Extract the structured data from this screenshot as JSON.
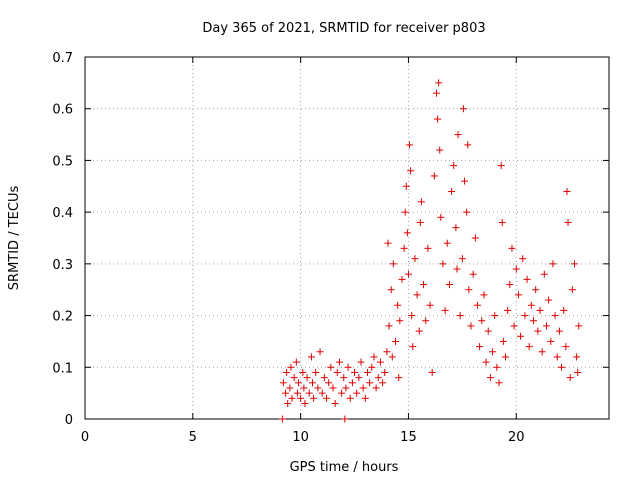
{
  "chart_data": {
    "type": "scatter",
    "title": "Day 365 of 2021, SRMTID for receiver p803",
    "xlabel": "GPS time / hours",
    "ylabel": "SRMTID / TECUs",
    "xlim": [
      0,
      24.3
    ],
    "ylim": [
      0,
      0.7
    ],
    "xticks": [
      0,
      5,
      10,
      15,
      20
    ],
    "yticks": [
      0,
      0.1,
      0.2,
      0.3,
      0.4,
      0.5,
      0.6,
      0.7
    ],
    "grid": true,
    "marker": "+",
    "color": "#e00000",
    "series": [
      {
        "name": "SRMTID",
        "points": [
          [
            9.15,
            0.0
          ],
          [
            9.2,
            0.07
          ],
          [
            9.3,
            0.05
          ],
          [
            9.35,
            0.09
          ],
          [
            9.4,
            0.03
          ],
          [
            9.5,
            0.06
          ],
          [
            9.55,
            0.1
          ],
          [
            9.6,
            0.04
          ],
          [
            9.7,
            0.08
          ],
          [
            9.8,
            0.11
          ],
          [
            9.85,
            0.05
          ],
          [
            9.9,
            0.07
          ],
          [
            10.0,
            0.04
          ],
          [
            10.1,
            0.09
          ],
          [
            10.15,
            0.06
          ],
          [
            10.2,
            0.03
          ],
          [
            10.3,
            0.08
          ],
          [
            10.4,
            0.05
          ],
          [
            10.5,
            0.12
          ],
          [
            10.55,
            0.07
          ],
          [
            10.6,
            0.04
          ],
          [
            10.7,
            0.09
          ],
          [
            10.8,
            0.06
          ],
          [
            10.9,
            0.13
          ],
          [
            11.0,
            0.05
          ],
          [
            11.1,
            0.08
          ],
          [
            11.2,
            0.04
          ],
          [
            11.3,
            0.07
          ],
          [
            11.4,
            0.1
          ],
          [
            11.5,
            0.06
          ],
          [
            11.6,
            0.03
          ],
          [
            11.7,
            0.09
          ],
          [
            11.8,
            0.11
          ],
          [
            11.9,
            0.05
          ],
          [
            12.0,
            0.08
          ],
          [
            12.05,
            0.0
          ],
          [
            12.1,
            0.06
          ],
          [
            12.2,
            0.1
          ],
          [
            12.3,
            0.04
          ],
          [
            12.4,
            0.07
          ],
          [
            12.5,
            0.09
          ],
          [
            12.6,
            0.05
          ],
          [
            12.7,
            0.08
          ],
          [
            12.8,
            0.11
          ],
          [
            12.9,
            0.06
          ],
          [
            13.0,
            0.04
          ],
          [
            13.1,
            0.09
          ],
          [
            13.2,
            0.07
          ],
          [
            13.3,
            0.1
          ],
          [
            13.4,
            0.12
          ],
          [
            13.5,
            0.06
          ],
          [
            13.6,
            0.08
          ],
          [
            13.7,
            0.11
          ],
          [
            13.8,
            0.07
          ],
          [
            13.9,
            0.09
          ],
          [
            14.0,
            0.13
          ],
          [
            14.05,
            0.34
          ],
          [
            14.1,
            0.18
          ],
          [
            14.2,
            0.25
          ],
          [
            14.25,
            0.12
          ],
          [
            14.3,
            0.3
          ],
          [
            14.4,
            0.15
          ],
          [
            14.5,
            0.22
          ],
          [
            14.55,
            0.08
          ],
          [
            14.6,
            0.19
          ],
          [
            14.7,
            0.27
          ],
          [
            14.8,
            0.33
          ],
          [
            14.85,
            0.4
          ],
          [
            14.9,
            0.45
          ],
          [
            14.95,
            0.36
          ],
          [
            15.0,
            0.28
          ],
          [
            15.05,
            0.53
          ],
          [
            15.1,
            0.48
          ],
          [
            15.15,
            0.2
          ],
          [
            15.2,
            0.14
          ],
          [
            15.3,
            0.31
          ],
          [
            15.4,
            0.24
          ],
          [
            15.5,
            0.17
          ],
          [
            15.55,
            0.38
          ],
          [
            15.6,
            0.42
          ],
          [
            15.7,
            0.26
          ],
          [
            15.8,
            0.19
          ],
          [
            15.9,
            0.33
          ],
          [
            16.0,
            0.22
          ],
          [
            16.1,
            0.09
          ],
          [
            16.2,
            0.47
          ],
          [
            16.3,
            0.63
          ],
          [
            16.35,
            0.58
          ],
          [
            16.4,
            0.65
          ],
          [
            16.45,
            0.52
          ],
          [
            16.5,
            0.39
          ],
          [
            16.6,
            0.3
          ],
          [
            16.7,
            0.21
          ],
          [
            16.8,
            0.34
          ],
          [
            16.9,
            0.26
          ],
          [
            17.0,
            0.44
          ],
          [
            17.1,
            0.49
          ],
          [
            17.2,
            0.37
          ],
          [
            17.25,
            0.29
          ],
          [
            17.3,
            0.55
          ],
          [
            17.4,
            0.2
          ],
          [
            17.5,
            0.31
          ],
          [
            17.55,
            0.6
          ],
          [
            17.6,
            0.46
          ],
          [
            17.7,
            0.4
          ],
          [
            17.75,
            0.53
          ],
          [
            17.8,
            0.25
          ],
          [
            17.9,
            0.18
          ],
          [
            18.0,
            0.28
          ],
          [
            18.1,
            0.35
          ],
          [
            18.2,
            0.22
          ],
          [
            18.3,
            0.14
          ],
          [
            18.4,
            0.19
          ],
          [
            18.5,
            0.24
          ],
          [
            18.6,
            0.11
          ],
          [
            18.7,
            0.17
          ],
          [
            18.8,
            0.08
          ],
          [
            18.9,
            0.13
          ],
          [
            19.0,
            0.2
          ],
          [
            19.1,
            0.1
          ],
          [
            19.2,
            0.07
          ],
          [
            19.3,
            0.49
          ],
          [
            19.35,
            0.38
          ],
          [
            19.4,
            0.15
          ],
          [
            19.5,
            0.12
          ],
          [
            19.6,
            0.21
          ],
          [
            19.7,
            0.26
          ],
          [
            19.8,
            0.33
          ],
          [
            19.9,
            0.18
          ],
          [
            20.0,
            0.29
          ],
          [
            20.1,
            0.24
          ],
          [
            20.2,
            0.16
          ],
          [
            20.3,
            0.31
          ],
          [
            20.4,
            0.2
          ],
          [
            20.5,
            0.27
          ],
          [
            20.6,
            0.14
          ],
          [
            20.7,
            0.22
          ],
          [
            20.8,
            0.19
          ],
          [
            20.9,
            0.25
          ],
          [
            21.0,
            0.17
          ],
          [
            21.1,
            0.21
          ],
          [
            21.2,
            0.13
          ],
          [
            21.3,
            0.28
          ],
          [
            21.4,
            0.18
          ],
          [
            21.5,
            0.23
          ],
          [
            21.6,
            0.15
          ],
          [
            21.7,
            0.3
          ],
          [
            21.8,
            0.2
          ],
          [
            21.9,
            0.12
          ],
          [
            22.0,
            0.17
          ],
          [
            22.1,
            0.1
          ],
          [
            22.2,
            0.21
          ],
          [
            22.3,
            0.14
          ],
          [
            22.35,
            0.44
          ],
          [
            22.4,
            0.38
          ],
          [
            22.5,
            0.08
          ],
          [
            22.6,
            0.25
          ],
          [
            22.7,
            0.3
          ],
          [
            22.8,
            0.12
          ],
          [
            22.85,
            0.09
          ],
          [
            22.9,
            0.18
          ]
        ]
      }
    ]
  }
}
